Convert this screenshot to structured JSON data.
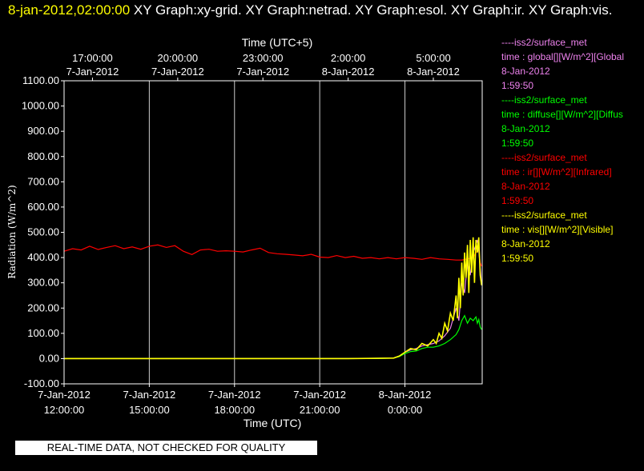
{
  "header": {
    "time_label": "8-jan-2012,02:00:00",
    "title_text": "XY Graph:xy-grid.  XY Graph:netrad.  XY Graph:esol.  XY Graph:ir.  XY Graph:vis."
  },
  "legend": [
    {
      "site": "----iss2/surface_met",
      "variable": "time : global[][W/m^2][Global",
      "date": "8-Jan-2012",
      "time": "1:59:50",
      "color": "#ee82ee"
    },
    {
      "site": "----iss2/surface_met",
      "variable": "time : diffuse[][W/m^2][Diffus",
      "date": "8-Jan-2012",
      "time": "1:59:50",
      "color": "#00ff00"
    },
    {
      "site": "----iss2/surface_met",
      "variable": "time : ir[][W/m^2][Infrared]",
      "date": "8-Jan-2012",
      "time": "1:59:50",
      "color": "#ff0000"
    },
    {
      "site": "----iss2/surface_met",
      "variable": "time : vis[][W/m^2][Visible]",
      "date": "8-Jan-2012",
      "time": "1:59:50",
      "color": "#ffff00"
    }
  ],
  "footer": {
    "quality_note": "REAL-TIME DATA, NOT CHECKED FOR QUALITY"
  },
  "chart_data": {
    "type": "line",
    "top_axis": {
      "label": "Time (UTC+5)",
      "ticks": [
        {
          "x": 13,
          "time": "17:00:00",
          "date": "7-Jan-2012"
        },
        {
          "x": 16,
          "time": "20:00:00",
          "date": "7-Jan-2012"
        },
        {
          "x": 19,
          "time": "23:00:00",
          "date": "7-Jan-2012"
        },
        {
          "x": 22,
          "time": "2:00:00",
          "date": "8-Jan-2012"
        },
        {
          "x": 25,
          "time": "5:00:00",
          "date": "8-Jan-2012"
        }
      ]
    },
    "x_axis": {
      "label": "Time (UTC)",
      "unit": "hours since 7-Jan-2012 00:00 UTC",
      "range": [
        12,
        26.72
      ],
      "ticks": [
        {
          "x": 12,
          "date": "7-Jan-2012",
          "time": "12:00:00"
        },
        {
          "x": 15,
          "date": "7-Jan-2012",
          "time": "15:00:00"
        },
        {
          "x": 18,
          "date": "7-Jan-2012",
          "time": "18:00:00"
        },
        {
          "x": 21,
          "date": "7-Jan-2012",
          "time": "21:00:00"
        },
        {
          "x": 24,
          "date": "8-Jan-2012",
          "time": "0:00:00"
        }
      ]
    },
    "y_axis": {
      "label": "Radiation (W/m^2)",
      "range": [
        -100,
        1100
      ],
      "ticks": [
        "-100.00",
        "0.00",
        "100.00",
        "200.00",
        "300.00",
        "400.00",
        "500.00",
        "600.00",
        "700.00",
        "800.00",
        "900.00",
        "1000.00",
        "1100.00"
      ],
      "tick_values": [
        -100,
        0,
        100,
        200,
        300,
        400,
        500,
        600,
        700,
        800,
        900,
        1000,
        1100
      ]
    },
    "grid": "vertical lines at x ticks",
    "series": [
      {
        "name": "ir",
        "color": "#ff0000",
        "x": [
          12.0,
          12.3,
          12.6,
          12.9,
          13.2,
          13.5,
          13.8,
          14.1,
          14.4,
          14.7,
          15.0,
          15.3,
          15.6,
          15.9,
          16.2,
          16.5,
          16.8,
          17.1,
          17.4,
          17.7,
          18.0,
          18.3,
          18.6,
          18.9,
          19.2,
          19.5,
          19.8,
          20.1,
          20.4,
          20.7,
          21.0,
          21.3,
          21.6,
          21.9,
          22.2,
          22.5,
          22.8,
          23.1,
          23.4,
          23.7,
          24.0,
          24.3,
          24.6,
          24.9,
          25.2,
          25.5,
          25.8,
          26.0,
          26.1,
          26.2,
          26.3,
          26.4,
          26.5,
          26.6,
          26.65,
          26.7
        ],
        "y": [
          425,
          435,
          430,
          445,
          432,
          440,
          447,
          435,
          442,
          433,
          445,
          450,
          440,
          447,
          425,
          412,
          430,
          433,
          425,
          427,
          425,
          422,
          430,
          437,
          420,
          415,
          413,
          410,
          407,
          413,
          402,
          400,
          408,
          400,
          405,
          397,
          400,
          395,
          400,
          395,
          400,
          397,
          393,
          400,
          395,
          393,
          390,
          390,
          392,
          395,
          397,
          398,
          420,
          430,
          380,
          365
        ]
      },
      {
        "name": "diffuse",
        "color": "#00ff00",
        "x": [
          12.0,
          13.0,
          14.0,
          15.0,
          16.0,
          17.0,
          18.0,
          19.0,
          20.0,
          21.0,
          22.0,
          23.0,
          23.6,
          23.8,
          24.0,
          24.2,
          24.4,
          24.6,
          24.8,
          25.0,
          25.2,
          25.4,
          25.6,
          25.8,
          25.9,
          26.0,
          26.1,
          26.2,
          26.3,
          26.4,
          26.5,
          26.55,
          26.6,
          26.65,
          26.7
        ],
        "y": [
          0,
          0,
          1,
          0,
          1,
          0,
          0,
          0,
          0,
          0,
          0,
          0,
          2,
          8,
          20,
          28,
          30,
          40,
          45,
          45,
          50,
          60,
          75,
          95,
          115,
          150,
          170,
          140,
          160,
          150,
          165,
          140,
          155,
          125,
          115
        ]
      },
      {
        "name": "global",
        "color": "#ee82ee",
        "x": [
          12.0,
          14.0,
          16.0,
          18.0,
          20.0,
          22.0,
          23.6,
          23.8,
          24.0,
          24.2,
          24.4,
          24.6,
          24.8,
          25.0,
          25.2,
          25.4,
          25.6,
          25.8,
          25.9,
          26.0,
          26.1,
          26.2,
          26.3,
          26.4,
          26.5,
          26.55,
          26.6,
          26.65,
          26.7
        ],
        "y": [
          0,
          0,
          0,
          0,
          0,
          0,
          2,
          10,
          25,
          35,
          40,
          50,
          55,
          60,
          70,
          90,
          120,
          200,
          150,
          300,
          260,
          380,
          330,
          420,
          450,
          470,
          430,
          360,
          290
        ]
      },
      {
        "name": "vis",
        "color": "#ffff00",
        "x": [
          12.0,
          14.0,
          16.0,
          18.0,
          20.0,
          22.0,
          23.6,
          23.8,
          24.0,
          24.2,
          24.4,
          24.6,
          24.8,
          25.0,
          25.1,
          25.2,
          25.3,
          25.4,
          25.5,
          25.6,
          25.7,
          25.8,
          25.85,
          25.9,
          25.95,
          26.0,
          26.05,
          26.1,
          26.15,
          26.2,
          26.25,
          26.3,
          26.35,
          26.4,
          26.45,
          26.5,
          26.55,
          26.6,
          26.65,
          26.7
        ],
        "y": [
          0,
          0,
          0,
          0,
          0,
          0,
          2,
          10,
          25,
          40,
          35,
          60,
          50,
          75,
          60,
          100,
          80,
          140,
          110,
          180,
          150,
          250,
          160,
          320,
          200,
          380,
          250,
          420,
          320,
          450,
          260,
          470,
          340,
          480,
          300,
          470,
          420,
          480,
          330,
          290
        ]
      }
    ]
  }
}
